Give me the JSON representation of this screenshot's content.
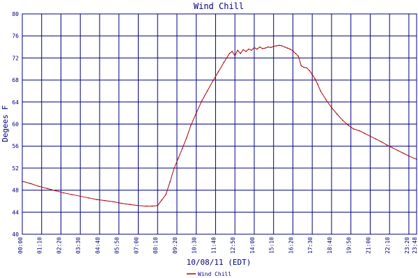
{
  "chart_data": {
    "type": "line",
    "title": "Wind Chill",
    "ylabel": "Degees F",
    "xlabel": "10/08/11 (EDT)",
    "ylim": [
      40,
      80
    ],
    "y_ticks": [
      "40",
      "44",
      "48",
      "52",
      "56",
      "60",
      "64",
      "68",
      "72",
      "76",
      "80"
    ],
    "x_tick_labels": [
      "00:00",
      "01:10",
      "02:20",
      "03:30",
      "04:40",
      "05:50",
      "07:00",
      "08:10",
      "09:20",
      "10:30",
      "11:40",
      "12:50",
      "14:00",
      "15:10",
      "16:20",
      "17:30",
      "18:40",
      "19:50",
      "21:00",
      "22:10",
      "23:20",
      "23:48"
    ],
    "x_range": [
      "00:00",
      "23:48"
    ],
    "grid": true,
    "legend_position": "bottom-center",
    "colors": {
      "background": "#ffffff",
      "grid": "#000080",
      "axis_text": "#000080",
      "line": "#b00000"
    },
    "series": [
      {
        "name": "Wind Chill",
        "x": [
          "00:00",
          "00:30",
          "01:00",
          "01:30",
          "02:00",
          "02:30",
          "03:00",
          "03:30",
          "04:00",
          "04:30",
          "05:00",
          "05:30",
          "06:00",
          "06:30",
          "07:00",
          "07:30",
          "07:50",
          "08:10",
          "08:25",
          "08:40",
          "08:55",
          "09:10",
          "09:25",
          "09:40",
          "09:55",
          "10:10",
          "10:30",
          "10:50",
          "11:10",
          "11:30",
          "11:50",
          "12:10",
          "12:30",
          "12:40",
          "12:50",
          "13:00",
          "13:10",
          "13:20",
          "13:30",
          "13:40",
          "13:50",
          "14:00",
          "14:10",
          "14:20",
          "14:30",
          "14:40",
          "14:50",
          "15:00",
          "15:10",
          "15:20",
          "15:30",
          "15:40",
          "15:50",
          "16:00",
          "16:10",
          "16:20",
          "16:30",
          "16:40",
          "16:50",
          "17:00",
          "17:10",
          "17:20",
          "17:30",
          "17:40",
          "17:50",
          "18:00",
          "18:20",
          "18:40",
          "19:00",
          "19:20",
          "19:40",
          "20:00",
          "20:20",
          "20:40",
          "21:00",
          "21:20",
          "21:40",
          "22:00",
          "22:20",
          "22:40",
          "23:00",
          "23:20",
          "23:48"
        ],
        "values": [
          49.6,
          49.2,
          48.7,
          48.3,
          47.9,
          47.5,
          47.2,
          46.9,
          46.6,
          46.3,
          46.1,
          45.9,
          45.6,
          45.4,
          45.2,
          45.1,
          45.1,
          45.2,
          46.2,
          47.2,
          49.5,
          52.0,
          53.8,
          55.6,
          57.5,
          59.7,
          62.0,
          64.2,
          66.0,
          67.8,
          69.5,
          71.2,
          72.8,
          73.2,
          72.4,
          73.4,
          72.8,
          73.5,
          73.2,
          73.6,
          73.4,
          73.9,
          73.6,
          74.0,
          73.7,
          73.8,
          74.0,
          73.9,
          74.1,
          74.2,
          74.3,
          74.2,
          74.0,
          73.8,
          73.6,
          73.3,
          72.8,
          72.3,
          70.6,
          70.3,
          70.2,
          69.7,
          69.0,
          68.2,
          67.2,
          66.0,
          64.4,
          63.0,
          61.8,
          60.7,
          59.8,
          59.1,
          58.8,
          58.3,
          57.8,
          57.3,
          56.8,
          56.2,
          55.7,
          55.2,
          54.7,
          54.2,
          53.6
        ]
      }
    ]
  }
}
